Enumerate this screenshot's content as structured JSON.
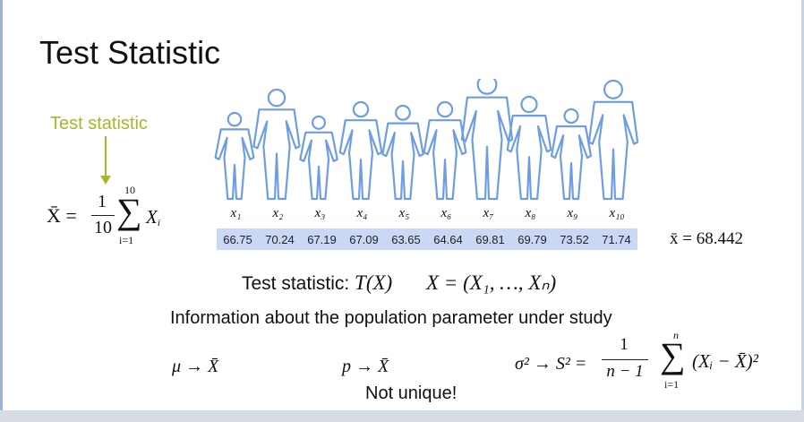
{
  "title": "Test Statistic",
  "annotation": "Test statistic",
  "formula": {
    "lhs": "X̄ =",
    "numerator": "1",
    "denominator": "10",
    "sum_upper": "10",
    "sum_lower": "i=1",
    "term": "X",
    "term_sub": "i"
  },
  "sample_labels": [
    "x₁",
    "x₂",
    "x₃",
    "x₄",
    "x₅",
    "x₆",
    "x₇",
    "x₈",
    "x₉",
    "x₁₀"
  ],
  "sample_values": [
    "66.75",
    "70.24",
    "67.19",
    "67.09",
    "63.65",
    "64.64",
    "69.81",
    "69.79",
    "73.52",
    "71.74"
  ],
  "sample_mean": "x̄ = 68.442",
  "test_stat_line": {
    "prefix": "Test statistic: ",
    "expr": "T(X)",
    "vector": "X = (X₁, …, Xₙ)"
  },
  "info_line": "Information about the population parameter under study",
  "examples": {
    "mu": "μ → X̄",
    "p": "p → X̄",
    "sigma_lhs": "σ² → S² =",
    "sigma_num": "1",
    "sigma_den": "n − 1",
    "sigma_sum_upper": "n",
    "sigma_sum_lower": "i=1",
    "sigma_term": "(Xᵢ − X̄)²"
  },
  "not_unique": "Not unique!",
  "colors": {
    "annotation": "#a8b62c",
    "figure_outline": "#6e9de3",
    "value_band": "#cad8f5"
  }
}
